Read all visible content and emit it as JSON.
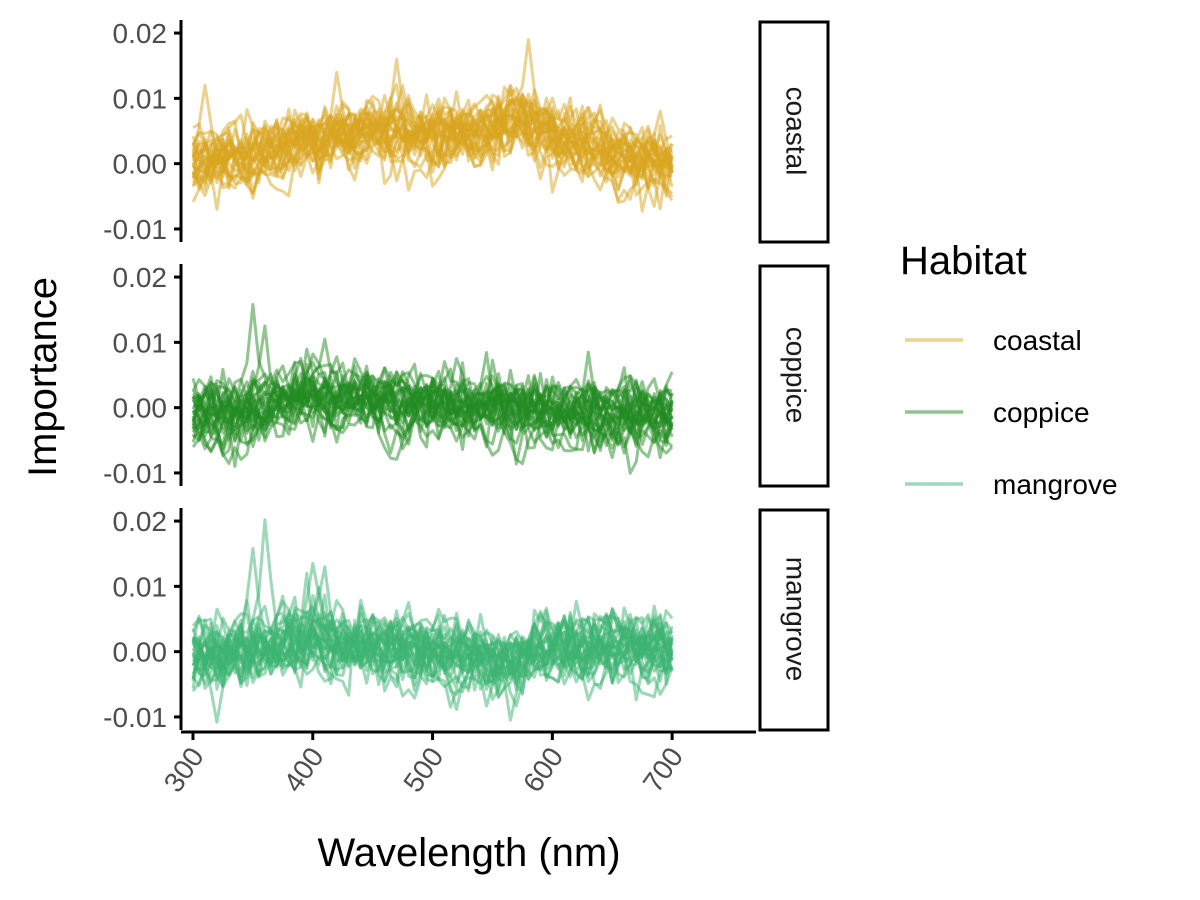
{
  "chart_data": {
    "type": "line",
    "title": "",
    "xlabel": "Wavelength (nm)",
    "ylabel": "Importance",
    "xlim": [
      290,
      770
    ],
    "ylim": [
      -0.012,
      0.022
    ],
    "x_ticks": [
      300,
      400,
      500,
      600,
      700
    ],
    "x_tick_labels": [
      "300",
      "400",
      "500",
      "600",
      "700"
    ],
    "y_ticks": [
      -0.01,
      0.0,
      0.01,
      0.02
    ],
    "y_tick_labels": [
      "-0.01",
      "0.00",
      "0.01",
      "0.02"
    ],
    "x_range": [
      300,
      700
    ],
    "x_step": 5,
    "lines_per_panel": 30,
    "line_opacity": 0.5,
    "grid": false,
    "legend_position": "right",
    "legend": {
      "title": "Habitat",
      "entries": [
        "coastal",
        "coppice",
        "mangrove"
      ]
    },
    "panels": [
      {
        "name": "coastal",
        "color": "#DAA520",
        "profile": {
          "x": [
            300,
            350,
            400,
            450,
            500,
            550,
            575,
            600,
            650,
            700
          ],
          "mean": [
            0.0,
            0.0015,
            0.0035,
            0.005,
            0.004,
            0.005,
            0.007,
            0.004,
            0.0015,
            -0.0005
          ]
        },
        "noise": 0.002,
        "spikes": [
          {
            "x": 470,
            "y": 0.016
          },
          {
            "x": 580,
            "y": 0.019
          },
          {
            "x": 420,
            "y": 0.014
          },
          {
            "x": 310,
            "y": 0.012
          },
          {
            "x": 320,
            "y": -0.007
          }
        ]
      },
      {
        "name": "coppice",
        "color": "#228B22",
        "profile": {
          "x": [
            300,
            350,
            400,
            450,
            500,
            550,
            600,
            650,
            700
          ],
          "mean": [
            -0.0005,
            0.0,
            0.002,
            0.001,
            0.0005,
            0.0,
            -0.0005,
            -0.001,
            -0.0005
          ]
        },
        "noise": 0.002,
        "spikes": [
          {
            "x": 350,
            "y": 0.0158
          },
          {
            "x": 360,
            "y": 0.0125
          },
          {
            "x": 410,
            "y": 0.0105
          },
          {
            "x": 630,
            "y": 0.0085
          },
          {
            "x": 335,
            "y": -0.009
          }
        ]
      },
      {
        "name": "mangrove",
        "color": "#3CB371",
        "profile": {
          "x": [
            300,
            350,
            400,
            450,
            500,
            550,
            600,
            650,
            700
          ],
          "mean": [
            -0.001,
            0.0005,
            0.0015,
            0.001,
            0.0005,
            -0.002,
            0.001,
            0.0005,
            0.0005
          ]
        },
        "noise": 0.0022,
        "spikes": [
          {
            "x": 360,
            "y": 0.0202
          },
          {
            "x": 350,
            "y": 0.0158
          },
          {
            "x": 400,
            "y": 0.0135
          },
          {
            "x": 410,
            "y": 0.013
          },
          {
            "x": 565,
            "y": -0.0105
          },
          {
            "x": 320,
            "y": -0.0108
          }
        ]
      }
    ]
  }
}
